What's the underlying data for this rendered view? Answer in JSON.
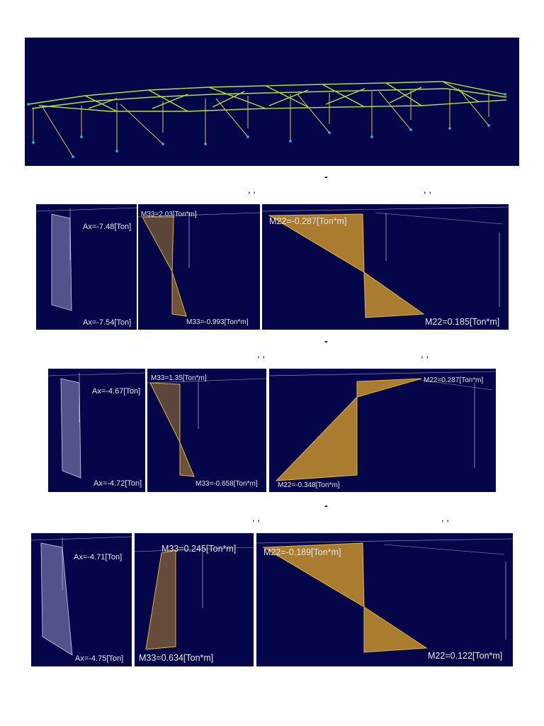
{
  "separators": {
    "dash": "-",
    "commas": ", ,"
  },
  "row1": {
    "axial": {
      "top": "Ax=-7.48[Ton]",
      "bottom": "Ax=-7.54[Ton]"
    },
    "m33": {
      "top": "M33=2.03[Ton*m]",
      "bottom": "M33=-0.993[Ton*m]"
    },
    "m22": {
      "top": "M22=-0.287[Ton*m]",
      "bottom": "M22=0.185[Ton*m]"
    }
  },
  "row2": {
    "axial": {
      "top": "Ax=-4.67[Ton]",
      "bottom": "Ax=-4.72[Ton]"
    },
    "m33": {
      "top": "M33=1.35[Ton*m]",
      "bottom": "M33=-0.658[Ton*m]"
    },
    "m22": {
      "top": "M22=0.287[Ton*m]",
      "bottom": "M22=-0.348[Ton*m]"
    }
  },
  "row3": {
    "axial": {
      "top": "Ax=-4.71[Ton]",
      "bottom": "Ax=-4.75[Ton]"
    },
    "m33": {
      "top": "M33=0.245[Ton*m]",
      "bottom": "M33=0.634[Ton*m]"
    },
    "m22": {
      "top": "M22=-0.189[Ton*m]",
      "bottom": "M22=0.122[Ton*m]"
    }
  },
  "colors": {
    "background": "#05064a",
    "diagram_fill": "#c8922a",
    "axial_fill": "#8f95bf",
    "frame_green": "#7ed321",
    "node": "#29b6f6"
  }
}
